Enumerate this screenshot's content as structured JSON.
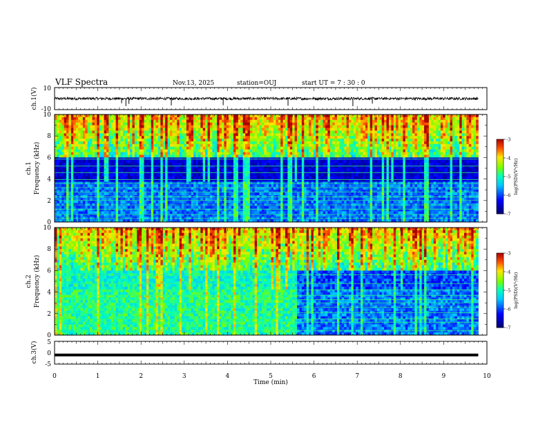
{
  "header": {
    "title": "VLF Spectra",
    "date": "Nov.13, 2025",
    "station": "station=OUJ",
    "start": "start  UT  =   7 : 30 : 0"
  },
  "chart_data": [
    {
      "type": "line",
      "name": "ch1 waveform",
      "ylabel": "ch.1(V)",
      "ylim": [
        -10,
        10
      ],
      "yticks": [
        "10",
        "-10"
      ],
      "xlim": [
        0,
        10
      ],
      "level": 0,
      "noise": 1.2,
      "spikes_min": [
        1.55,
        1.65,
        1.72,
        2.7,
        3.9,
        5.4,
        6.9,
        7.35
      ]
    },
    {
      "type": "heatmap",
      "name": "ch1 spectrogram",
      "ylabel": "ch.1\nFrequency (kHz)",
      "ylim": [
        0,
        10
      ],
      "yticks": [
        "0",
        "2",
        "4",
        "6",
        "8",
        "10"
      ],
      "xlim": [
        0,
        10
      ],
      "data_end_min": 9.8,
      "quiet_band_khz": [
        3.8,
        6.0
      ],
      "tones_khz": [
        0.35,
        0.7,
        1.2,
        1.6,
        2.0,
        2.35,
        2.8,
        3.2,
        3.6,
        3.95,
        4.6,
        5.2,
        5.85
      ],
      "colorbar": {
        "label": "log(PSD)(V²/Hz)",
        "range": [
          -7,
          -3
        ],
        "ticks": [
          "-3",
          "-4",
          "-5",
          "-6",
          "-7"
        ]
      }
    },
    {
      "type": "heatmap",
      "name": "ch2 spectrogram",
      "ylabel": "ch.2\nFrequency (kHz)",
      "ylim": [
        0,
        10
      ],
      "yticks": [
        "0",
        "2",
        "4",
        "6",
        "8",
        "10"
      ],
      "xlim": [
        0,
        10
      ],
      "data_end_min": 9.8,
      "transition_min": 5.6,
      "tones_khz": [
        0.4,
        1.2,
        1.5,
        2.1,
        2.6,
        3.0,
        3.3,
        3.7,
        4.2,
        4.8,
        5.6
      ],
      "colorbar": {
        "label": "log(PSD)(V²/Hz)",
        "range": [
          -7,
          -3
        ],
        "ticks": [
          "-3",
          "-4",
          "-5",
          "-6",
          "-7"
        ]
      }
    },
    {
      "type": "line",
      "name": "ch3 waveform",
      "ylabel": "ch.3(V)",
      "ylim": [
        -5,
        5
      ],
      "yticks": [
        "5",
        "0",
        "-5"
      ],
      "xlim": [
        0,
        10
      ],
      "level": -1.0,
      "band": 0.6
    }
  ],
  "xaxis": {
    "label": "Time (min)",
    "ticks": [
      "0",
      "1",
      "2",
      "3",
      "4",
      "5",
      "6",
      "7",
      "8",
      "9",
      "10"
    ]
  }
}
